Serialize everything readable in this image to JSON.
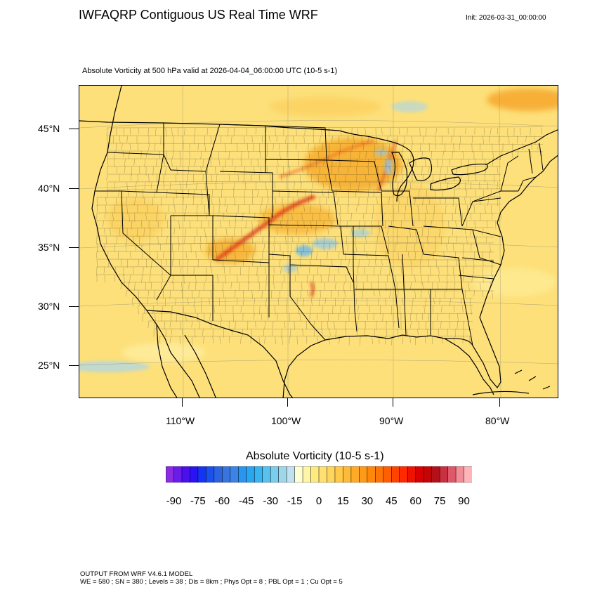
{
  "header": {
    "title": "IWFAQRP Contiguous US Real Time WRF",
    "init": "Init: 2026-03-31_00:00:00",
    "subtitle": "Absolute Vorticity at 500 hPa valid at 2026-04-04_06:00:00 UTC   (10-5 s-1)"
  },
  "map": {
    "lat_labels": [
      "45°N",
      "40°N",
      "35°N",
      "30°N",
      "25°N"
    ],
    "lon_labels": [
      "110°W",
      "100°W",
      "90°W",
      "80°W"
    ],
    "colors": {
      "background": "#fde07a",
      "land_tint": "#fbd86a",
      "boundaries": "#000000",
      "positive_high": "#e0401a",
      "positive_mid": "#f3a020",
      "negative": "#6ab8ea"
    }
  },
  "colorbar": {
    "title": "Absolute Vorticity  (10-5 s-1)",
    "labels": [
      "-90",
      "-75",
      "-60",
      "-45",
      "-30",
      "-15",
      "0",
      "15",
      "30",
      "45",
      "60",
      "75",
      "90"
    ],
    "colors": [
      "#8b2be2",
      "#6a1de8",
      "#4a10ef",
      "#2a12f3",
      "#1433f2",
      "#1c50ec",
      "#2a63e4",
      "#3a74de",
      "#3a84e8",
      "#2a95ee",
      "#28a6f2",
      "#38b4f0",
      "#55c2f0",
      "#7acdec",
      "#9fd6ea",
      "#c0e2ee",
      "#ffffd0",
      "#fff5a8",
      "#ffea80",
      "#ffe070",
      "#ffd55e",
      "#ffc94a",
      "#ffbb38",
      "#ffab28",
      "#ff9a18",
      "#ff880c",
      "#ff7406",
      "#ff5e02",
      "#ff4400",
      "#ff2a00",
      "#f01200",
      "#d80000",
      "#c40406",
      "#b4101a",
      "#c93040",
      "#e05868",
      "#f28c96",
      "#ffb4b8"
    ]
  },
  "footer": {
    "line1": "OUTPUT FROM WRF V4.6.1 MODEL",
    "line2": "WE = 580 ; SN = 380 ; Levels = 38 ; Dis = 8km ; Phys Opt = 8 ; PBL Opt = 1 ; Cu Opt = 5"
  }
}
